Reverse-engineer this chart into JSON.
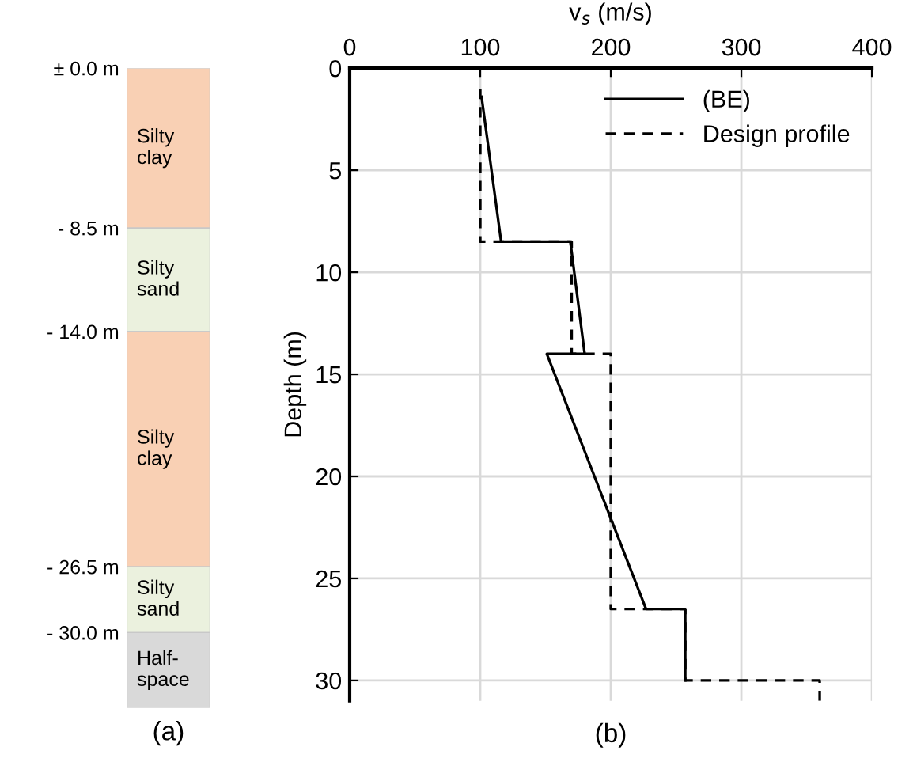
{
  "chart_data": [
    {
      "type": "bar",
      "stacked": true,
      "categories": [
        null
      ],
      "xlabel": "(a)",
      "ylim": [
        -34,
        0
      ],
      "yticks": [
        {
          "value": 0,
          "label": "± 0.0 m"
        },
        {
          "value": -8.5,
          "label": "- 8.5 m"
        },
        {
          "value": -14,
          "label": "- 14.0 m"
        },
        {
          "value": -26.5,
          "label": "- 26.5 m"
        },
        {
          "value": -30,
          "label": "- 30.0 m"
        }
      ],
      "tick_labels": "y",
      "grid": false,
      "legend": false,
      "series": [
        {
          "name": "Silty\nclay",
          "color": "#f9d0b4",
          "values": [
            -8.5
          ]
        },
        {
          "name": "Silty\nsand",
          "color": "#ebf1de",
          "values": [
            -5.5
          ]
        },
        {
          "name": "Silty\nclay",
          "color": "#f9d0b4",
          "values": [
            -12.5
          ]
        },
        {
          "name": "Silty\nsand",
          "color": "#ebf1de",
          "values": [
            -3.5
          ]
        },
        {
          "name": "Half-\nspace",
          "color": "#d9d9d9",
          "values": [
            -4
          ]
        }
      ]
    },
    {
      "type": "line",
      "xlabel": "v$_{s}$ (m/s)",
      "ylabel": "Depth (m)",
      "x2label": "(b)",
      "xlim": [
        0,
        400
      ],
      "xticks": [
        0,
        100,
        200,
        300,
        400
      ],
      "ylim": [
        31,
        0
      ],
      "yticks": [
        0,
        5,
        10,
        15,
        20,
        25,
        30
      ],
      "grid": true,
      "legend": "top right",
      "series": [
        {
          "name": "(BE)",
          "color": "#000000",
          "line_style": "solid",
          "x": [
            101,
            116,
            169,
            180,
            151,
            227,
            257,
            257
          ],
          "values": [
            1.4,
            8.5,
            8.5,
            14,
            14,
            26.5,
            26.5,
            30
          ]
        },
        {
          "name": "Design profile",
          "color": "#000000",
          "line_style": "dashed",
          "x": [
            100,
            100,
            170,
            170,
            200,
            200,
            257,
            257,
            360,
            360
          ],
          "values": [
            1,
            8.5,
            8.5,
            14,
            14,
            26.5,
            26.5,
            30,
            30,
            31
          ]
        }
      ]
    }
  ]
}
